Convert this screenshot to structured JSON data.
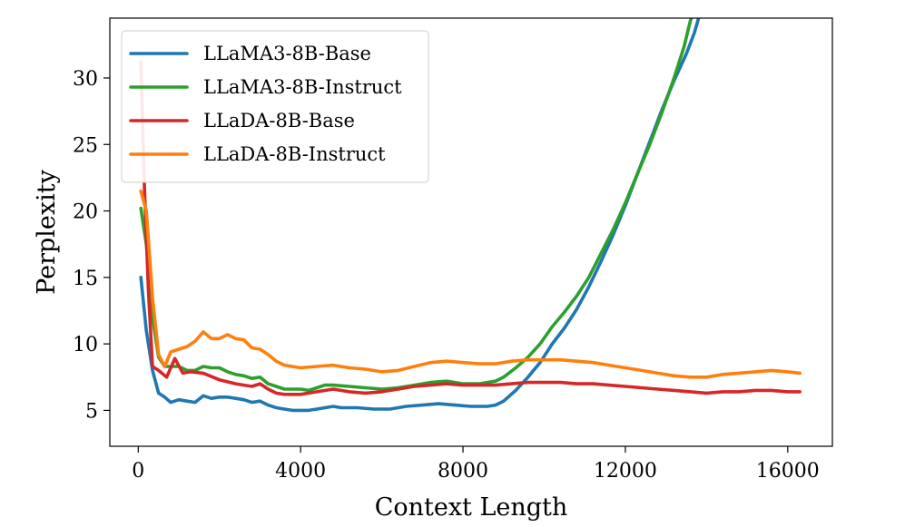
{
  "chart_data": {
    "type": "line",
    "xlabel": "Context Length",
    "ylabel": "Perplexity",
    "xlim": [
      -700,
      17100
    ],
    "ylim": [
      2.3,
      34.5
    ],
    "xticks": [
      0,
      4000,
      8000,
      12000,
      16000
    ],
    "xtick_labels": [
      "0",
      "4000",
      "8000",
      "12000",
      "16000"
    ],
    "yticks": [
      5,
      10,
      15,
      20,
      25,
      30
    ],
    "ytick_labels": [
      "5",
      "10",
      "15",
      "20",
      "25",
      "30"
    ],
    "grid": false,
    "legend_position": "top-left",
    "series": [
      {
        "name": "LLaMA3-8B-Base",
        "color": "#1f77b4",
        "points": [
          [
            64,
            15.0
          ],
          [
            200,
            11.0
          ],
          [
            350,
            8.0
          ],
          [
            500,
            6.3
          ],
          [
            650,
            6.0
          ],
          [
            800,
            5.6
          ],
          [
            1000,
            5.8
          ],
          [
            1200,
            5.7
          ],
          [
            1400,
            5.6
          ],
          [
            1600,
            6.1
          ],
          [
            1800,
            5.9
          ],
          [
            2000,
            6.0
          ],
          [
            2200,
            6.0
          ],
          [
            2400,
            5.9
          ],
          [
            2600,
            5.8
          ],
          [
            2800,
            5.6
          ],
          [
            3000,
            5.7
          ],
          [
            3200,
            5.4
          ],
          [
            3400,
            5.2
          ],
          [
            3600,
            5.1
          ],
          [
            3800,
            5.0
          ],
          [
            4000,
            5.0
          ],
          [
            4200,
            5.0
          ],
          [
            4400,
            5.1
          ],
          [
            4600,
            5.2
          ],
          [
            4800,
            5.3
          ],
          [
            5000,
            5.2
          ],
          [
            5400,
            5.2
          ],
          [
            5800,
            5.1
          ],
          [
            6200,
            5.1
          ],
          [
            6600,
            5.3
          ],
          [
            7000,
            5.4
          ],
          [
            7400,
            5.5
          ],
          [
            7800,
            5.4
          ],
          [
            8200,
            5.3
          ],
          [
            8600,
            5.3
          ],
          [
            8800,
            5.4
          ],
          [
            9000,
            5.7
          ],
          [
            9300,
            6.5
          ],
          [
            9600,
            7.5
          ],
          [
            9900,
            8.6
          ],
          [
            10200,
            10.0
          ],
          [
            10500,
            11.2
          ],
          [
            10800,
            12.6
          ],
          [
            11100,
            14.3
          ],
          [
            11400,
            16.2
          ],
          [
            11700,
            18.2
          ],
          [
            12000,
            20.4
          ],
          [
            12300,
            22.8
          ],
          [
            12600,
            25.2
          ],
          [
            12900,
            27.6
          ],
          [
            13200,
            29.8
          ],
          [
            13500,
            31.8
          ],
          [
            13700,
            33.4
          ],
          [
            13850,
            35.0
          ]
        ]
      },
      {
        "name": "LLaMA3-8B-Instruct",
        "color": "#2ca02c",
        "points": [
          [
            64,
            20.2
          ],
          [
            200,
            17.5
          ],
          [
            350,
            12.0
          ],
          [
            500,
            9.0
          ],
          [
            650,
            8.3
          ],
          [
            800,
            8.3
          ],
          [
            1000,
            8.3
          ],
          [
            1200,
            8.0
          ],
          [
            1400,
            8.0
          ],
          [
            1600,
            8.3
          ],
          [
            1800,
            8.2
          ],
          [
            2000,
            8.2
          ],
          [
            2200,
            7.9
          ],
          [
            2400,
            7.7
          ],
          [
            2600,
            7.6
          ],
          [
            2800,
            7.4
          ],
          [
            3000,
            7.5
          ],
          [
            3200,
            7.0
          ],
          [
            3400,
            6.8
          ],
          [
            3600,
            6.6
          ],
          [
            3800,
            6.6
          ],
          [
            4000,
            6.6
          ],
          [
            4200,
            6.5
          ],
          [
            4400,
            6.7
          ],
          [
            4600,
            6.9
          ],
          [
            4800,
            6.9
          ],
          [
            5200,
            6.8
          ],
          [
            5600,
            6.7
          ],
          [
            6000,
            6.6
          ],
          [
            6400,
            6.7
          ],
          [
            6800,
            6.9
          ],
          [
            7200,
            7.1
          ],
          [
            7600,
            7.2
          ],
          [
            8000,
            7.0
          ],
          [
            8400,
            7.0
          ],
          [
            8800,
            7.2
          ],
          [
            9000,
            7.5
          ],
          [
            9300,
            8.2
          ],
          [
            9600,
            9.0
          ],
          [
            9900,
            10.0
          ],
          [
            10200,
            11.3
          ],
          [
            10500,
            12.4
          ],
          [
            10800,
            13.6
          ],
          [
            11100,
            15.0
          ],
          [
            11400,
            16.8
          ],
          [
            11700,
            18.6
          ],
          [
            12000,
            20.6
          ],
          [
            12300,
            22.8
          ],
          [
            12600,
            25.0
          ],
          [
            12900,
            27.4
          ],
          [
            13200,
            30.0
          ],
          [
            13450,
            32.4
          ],
          [
            13600,
            34.3
          ],
          [
            13700,
            35.0
          ]
        ]
      },
      {
        "name": "LLaDA-8B-Base",
        "color": "#d62728",
        "points": [
          [
            64,
            31.2
          ],
          [
            150,
            22.0
          ],
          [
            250,
            14.0
          ],
          [
            350,
            8.3
          ],
          [
            500,
            8.0
          ],
          [
            700,
            7.5
          ],
          [
            900,
            8.9
          ],
          [
            1100,
            7.8
          ],
          [
            1300,
            7.9
          ],
          [
            1600,
            7.8
          ],
          [
            2000,
            7.3
          ],
          [
            2400,
            7.0
          ],
          [
            2800,
            6.8
          ],
          [
            3000,
            7.0
          ],
          [
            3200,
            6.6
          ],
          [
            3400,
            6.3
          ],
          [
            3600,
            6.2
          ],
          [
            4000,
            6.2
          ],
          [
            4400,
            6.4
          ],
          [
            4800,
            6.6
          ],
          [
            5200,
            6.4
          ],
          [
            5600,
            6.3
          ],
          [
            6000,
            6.4
          ],
          [
            6400,
            6.6
          ],
          [
            6800,
            6.8
          ],
          [
            7200,
            6.9
          ],
          [
            7600,
            7.0
          ],
          [
            8000,
            6.9
          ],
          [
            8400,
            6.9
          ],
          [
            8800,
            6.9
          ],
          [
            9200,
            7.0
          ],
          [
            9600,
            7.1
          ],
          [
            10000,
            7.1
          ],
          [
            10400,
            7.1
          ],
          [
            10800,
            7.0
          ],
          [
            11200,
            7.0
          ],
          [
            11600,
            6.9
          ],
          [
            12000,
            6.8
          ],
          [
            12400,
            6.7
          ],
          [
            12800,
            6.6
          ],
          [
            13200,
            6.5
          ],
          [
            13600,
            6.4
          ],
          [
            14000,
            6.3
          ],
          [
            14400,
            6.4
          ],
          [
            14800,
            6.4
          ],
          [
            15200,
            6.5
          ],
          [
            15600,
            6.5
          ],
          [
            16000,
            6.4
          ],
          [
            16300,
            6.4
          ]
        ]
      },
      {
        "name": "LLaDA-8B-Instruct",
        "color": "#ff7f0e",
        "points": [
          [
            64,
            21.5
          ],
          [
            200,
            20.0
          ],
          [
            350,
            13.5
          ],
          [
            500,
            9.2
          ],
          [
            650,
            8.3
          ],
          [
            800,
            9.4
          ],
          [
            1000,
            9.6
          ],
          [
            1200,
            9.8
          ],
          [
            1400,
            10.2
          ],
          [
            1600,
            10.9
          ],
          [
            1800,
            10.4
          ],
          [
            2000,
            10.4
          ],
          [
            2200,
            10.7
          ],
          [
            2400,
            10.4
          ],
          [
            2600,
            10.3
          ],
          [
            2800,
            9.7
          ],
          [
            3000,
            9.6
          ],
          [
            3200,
            9.2
          ],
          [
            3400,
            8.7
          ],
          [
            3600,
            8.4
          ],
          [
            4000,
            8.2
          ],
          [
            4400,
            8.3
          ],
          [
            4800,
            8.4
          ],
          [
            5200,
            8.2
          ],
          [
            5600,
            8.1
          ],
          [
            6000,
            7.9
          ],
          [
            6400,
            8.0
          ],
          [
            6800,
            8.3
          ],
          [
            7200,
            8.6
          ],
          [
            7600,
            8.7
          ],
          [
            8000,
            8.6
          ],
          [
            8400,
            8.5
          ],
          [
            8800,
            8.5
          ],
          [
            9200,
            8.7
          ],
          [
            9600,
            8.8
          ],
          [
            10000,
            8.8
          ],
          [
            10400,
            8.8
          ],
          [
            10800,
            8.7
          ],
          [
            11200,
            8.6
          ],
          [
            11600,
            8.4
          ],
          [
            12000,
            8.2
          ],
          [
            12400,
            8.0
          ],
          [
            12800,
            7.8
          ],
          [
            13200,
            7.6
          ],
          [
            13600,
            7.5
          ],
          [
            14000,
            7.5
          ],
          [
            14400,
            7.7
          ],
          [
            14800,
            7.8
          ],
          [
            15200,
            7.9
          ],
          [
            15600,
            8.0
          ],
          [
            16000,
            7.9
          ],
          [
            16300,
            7.8
          ]
        ]
      }
    ]
  }
}
